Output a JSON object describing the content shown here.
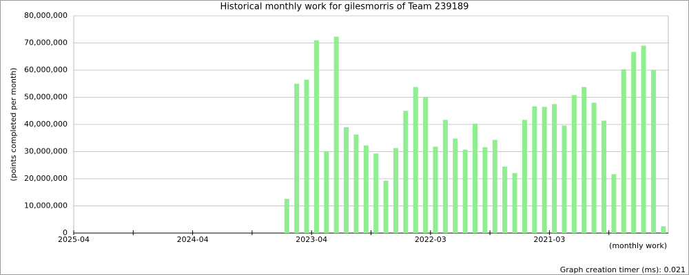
{
  "chart_data": {
    "type": "bar",
    "title": "Historical monthly work for gilesmorris of Team 239189",
    "ylabel": "(points completed per month)",
    "xlabel": "(monthly work)",
    "footer": "Graph creation timer (ms): 0.021",
    "color": "#90ee90",
    "grid": true,
    "categories": [
      "2025-04",
      null,
      null,
      null,
      null,
      null,
      null,
      null,
      null,
      null,
      null,
      null,
      "2024-04",
      null,
      null,
      null,
      null,
      null,
      null,
      null,
      null,
      null,
      null,
      null,
      "2023-04",
      null,
      null,
      null,
      null,
      null,
      null,
      null,
      null,
      null,
      null,
      null,
      "2022-03",
      null,
      null,
      null,
      null,
      null,
      null,
      null,
      null,
      null,
      null,
      null,
      "2021-03",
      null,
      null,
      null,
      null,
      null,
      null,
      null,
      null,
      null,
      null,
      null
    ],
    "values": [
      null,
      null,
      null,
      null,
      null,
      null,
      null,
      null,
      null,
      null,
      null,
      null,
      null,
      null,
      null,
      null,
      null,
      null,
      null,
      null,
      null,
      12600000,
      55000000,
      56500000,
      71000000,
      30000000,
      72300000,
      39000000,
      36300000,
      32300000,
      29300000,
      19300000,
      31300000,
      45000000,
      53800000,
      50000000,
      31800000,
      41700000,
      34800000,
      30700000,
      40300000,
      31600000,
      34300000,
      24500000,
      22100000,
      41700000,
      46700000,
      46500000,
      47500000,
      39600000,
      50800000,
      53800000,
      48000000,
      41400000,
      21700000,
      60300000,
      66700000,
      69000000,
      60000000,
      2500000
    ],
    "ylim": [
      0,
      80000000
    ],
    "yticks": [
      0,
      {
        "value": 10000000,
        "label": "10,000,000"
      },
      {
        "value": 20000000,
        "label": "20,000,000"
      },
      {
        "value": 30000000,
        "label": "30,000,000"
      },
      {
        "value": 40000000,
        "label": "40,000,000"
      },
      {
        "value": 50000000,
        "label": "50,000,000"
      },
      {
        "value": 60000000,
        "label": "60,000,000"
      },
      {
        "value": 70000000,
        "label": "70,000,000"
      },
      {
        "value": 80000000,
        "label": "80,000,000"
      }
    ]
  }
}
